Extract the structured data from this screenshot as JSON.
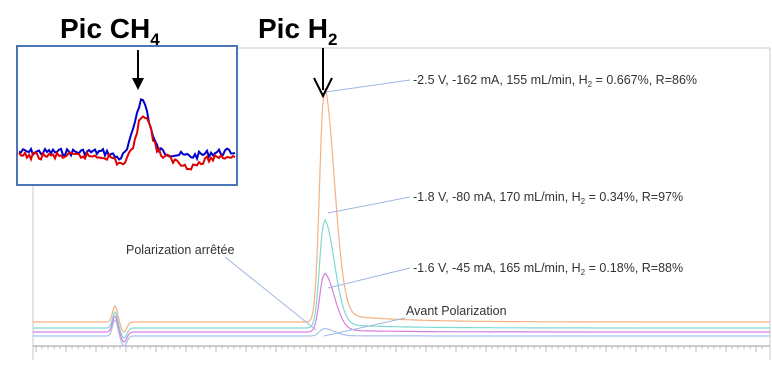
{
  "chart_data": {
    "type": "line",
    "annotations": {
      "pic_ch4": {
        "prefix": "Pic CH",
        "sub": "4"
      },
      "pic_h2": {
        "prefix": "Pic H",
        "sub": "2"
      },
      "stopped": "Polarization arrêtée",
      "before": "Avant Polarization"
    },
    "series": [
      {
        "color": "#f4b183",
        "peak_h2": 1.0,
        "label": {
          "pre": "-2.5 V,  -162 mA, 155 mL/min, H",
          "sub": "2",
          "post": " = 0.667%, R=86%"
        }
      },
      {
        "color": "#7fd9d2",
        "peak_h2": 0.45,
        "label": {
          "pre": "-1.8 V,  -80 mA, 170 mL/min, H",
          "sub": "2",
          "post": " = 0.34%, R=97%"
        }
      },
      {
        "color": "#d77ee0",
        "peak_h2": 0.24,
        "label": {
          "pre": "-1.6 V,  -45 mA, 165 mL/min, H",
          "sub": "2",
          "post": " = 0.18%, R=88%"
        }
      },
      {
        "color": "#a9c2e6",
        "peak_h2": 0.03
      }
    ],
    "inset": {
      "series_colors": [
        "#0000cc",
        "#e00000"
      ]
    }
  }
}
